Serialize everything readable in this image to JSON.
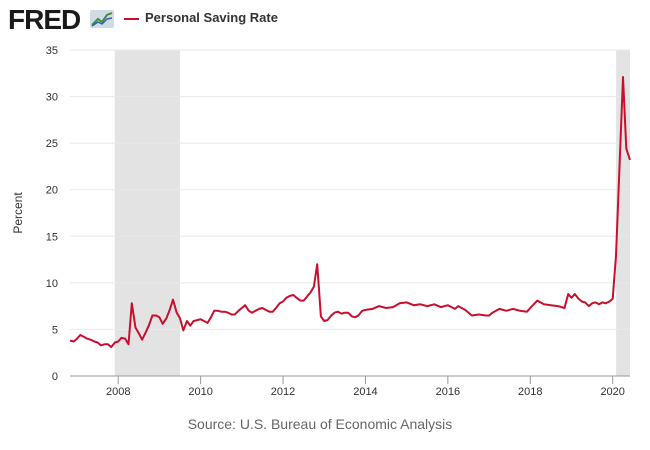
{
  "logo": {
    "text": "FRED"
  },
  "colors": {
    "series": "#c8102e",
    "recession": "#e3e3e3",
    "grid": "#e8e8e8",
    "text": "#333333"
  },
  "chart_data": {
    "type": "line",
    "title": "Personal Saving Rate",
    "ylabel": "Percent",
    "xlabel": "",
    "ylim": [
      0,
      35
    ],
    "yticks": [
      0,
      5,
      10,
      15,
      20,
      25,
      30,
      35
    ],
    "xlim": [
      2006.83,
      2020.42
    ],
    "xticks": [
      2008,
      2010,
      2012,
      2014,
      2016,
      2018,
      2020
    ],
    "grid": true,
    "legend_position": "top-left",
    "recessions": [
      {
        "start": 2007.917,
        "end": 2009.5
      },
      {
        "start": 2020.083,
        "end": 2020.42
      }
    ],
    "series": [
      {
        "name": "Personal Saving Rate",
        "x": [
          2006.83,
          2006.92,
          2007.0,
          2007.08,
          2007.17,
          2007.25,
          2007.33,
          2007.42,
          2007.5,
          2007.58,
          2007.67,
          2007.75,
          2007.83,
          2007.92,
          2008.0,
          2008.08,
          2008.17,
          2008.25,
          2008.33,
          2008.42,
          2008.5,
          2008.58,
          2008.67,
          2008.75,
          2008.83,
          2008.92,
          2009.0,
          2009.08,
          2009.17,
          2009.25,
          2009.33,
          2009.42,
          2009.5,
          2009.58,
          2009.67,
          2009.75,
          2009.83,
          2009.92,
          2010.0,
          2010.08,
          2010.17,
          2010.25,
          2010.33,
          2010.42,
          2010.5,
          2010.58,
          2010.67,
          2010.75,
          2010.83,
          2010.92,
          2011.0,
          2011.08,
          2011.17,
          2011.25,
          2011.33,
          2011.42,
          2011.5,
          2011.58,
          2011.67,
          2011.75,
          2011.83,
          2011.92,
          2012.0,
          2012.08,
          2012.17,
          2012.25,
          2012.33,
          2012.42,
          2012.5,
          2012.58,
          2012.67,
          2012.75,
          2012.83,
          2012.92,
          2013.0,
          2013.08,
          2013.17,
          2013.25,
          2013.33,
          2013.42,
          2013.5,
          2013.58,
          2013.67,
          2013.75,
          2013.83,
          2013.92,
          2014.0,
          2014.17,
          2014.33,
          2014.5,
          2014.67,
          2014.83,
          2015.0,
          2015.17,
          2015.33,
          2015.5,
          2015.67,
          2015.83,
          2016.0,
          2016.17,
          2016.25,
          2016.42,
          2016.58,
          2016.75,
          2016.92,
          2017.0,
          2017.08,
          2017.25,
          2017.42,
          2017.58,
          2017.75,
          2017.92,
          2018.0,
          2018.17,
          2018.33,
          2018.5,
          2018.67,
          2018.83,
          2018.92,
          2019.0,
          2019.08,
          2019.17,
          2019.25,
          2019.33,
          2019.42,
          2019.5,
          2019.58,
          2019.67,
          2019.75,
          2019.83,
          2019.92,
          2020.0,
          2020.08,
          2020.17,
          2020.25,
          2020.33,
          2020.42
        ],
        "values": [
          3.8,
          3.7,
          4.0,
          4.4,
          4.2,
          4.0,
          3.9,
          3.7,
          3.6,
          3.3,
          3.4,
          3.4,
          3.1,
          3.6,
          3.7,
          4.1,
          4.0,
          3.4,
          7.8,
          5.2,
          4.6,
          3.9,
          4.7,
          5.5,
          6.5,
          6.5,
          6.3,
          5.6,
          6.2,
          7.1,
          8.2,
          6.8,
          6.2,
          4.9,
          5.9,
          5.4,
          5.9,
          6.0,
          6.1,
          5.9,
          5.7,
          6.3,
          7.0,
          7.0,
          6.9,
          6.9,
          6.8,
          6.6,
          6.6,
          7.0,
          7.3,
          7.6,
          7.0,
          6.8,
          7.0,
          7.2,
          7.3,
          7.1,
          6.9,
          6.9,
          7.3,
          7.8,
          8.0,
          8.4,
          8.6,
          8.7,
          8.4,
          8.1,
          8.1,
          8.5,
          9.0,
          9.6,
          12.0,
          6.4,
          5.9,
          6.0,
          6.5,
          6.8,
          6.9,
          6.7,
          6.8,
          6.8,
          6.4,
          6.3,
          6.5,
          7.0,
          7.1,
          7.2,
          7.5,
          7.3,
          7.4,
          7.8,
          7.9,
          7.6,
          7.7,
          7.5,
          7.7,
          7.4,
          7.6,
          7.2,
          7.5,
          7.1,
          6.5,
          6.6,
          6.5,
          6.5,
          6.8,
          7.2,
          7.0,
          7.2,
          7.0,
          6.9,
          7.3,
          8.1,
          7.7,
          7.6,
          7.5,
          7.3,
          8.8,
          8.4,
          8.8,
          8.3,
          8.0,
          7.9,
          7.5,
          7.8,
          7.9,
          7.7,
          7.9,
          7.8,
          8.0,
          8.3,
          12.9,
          23.0,
          32.1,
          24.4,
          23.2
        ]
      }
    ]
  },
  "source": "Source: U.S. Bureau of Economic Analysis"
}
